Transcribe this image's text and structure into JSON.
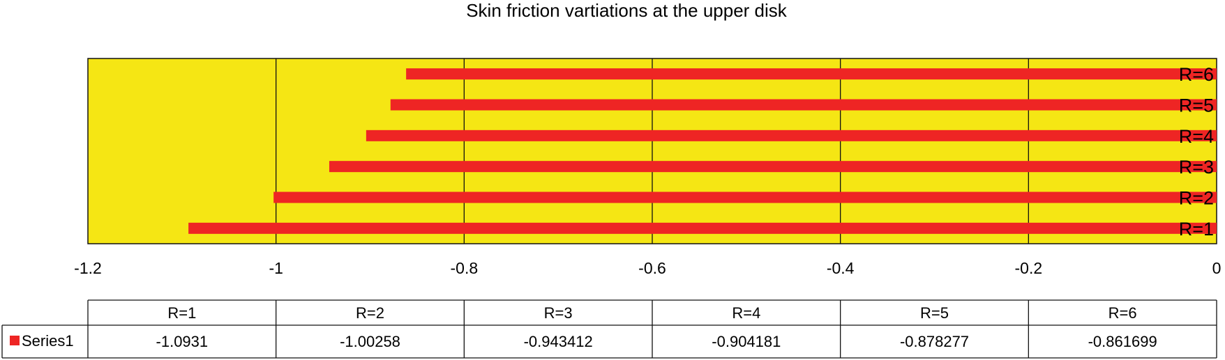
{
  "chart_data": {
    "type": "bar",
    "orientation": "horizontal",
    "title": "Skin friction vartiations at the upper disk",
    "xlabel": "",
    "ylabel": "",
    "xlim": [
      -1.2,
      0
    ],
    "x_ticks": [
      -1.2,
      -1,
      -0.8,
      -0.6,
      -0.4,
      -0.2,
      0
    ],
    "x_tick_labels": [
      "-1.2",
      "-1",
      "-0.8",
      "-0.6",
      "-0.4",
      "-0.2",
      "0"
    ],
    "grid": "vertical",
    "categories": [
      "R=1",
      "R=2",
      "R=3",
      "R=4",
      "R=5",
      "R=6"
    ],
    "series": [
      {
        "name": "Series1",
        "values": [
          -1.0931,
          -1.00258,
          -0.943412,
          -0.904181,
          -0.878277,
          -0.861699
        ]
      }
    ],
    "data_table": {
      "headers": [
        "R=1",
        "R=2",
        "R=3",
        "R=4",
        "R=5",
        "R=6"
      ],
      "rows": [
        {
          "label": "Series1",
          "cells": [
            "-1.0931",
            "-1.00258",
            "-0.943412",
            "-0.904181",
            "-0.878277",
            "-0.861699"
          ]
        }
      ]
    },
    "colors": {
      "plot_background": "#f5e614",
      "bar": "#ee2524",
      "gridline": "#111111"
    }
  }
}
